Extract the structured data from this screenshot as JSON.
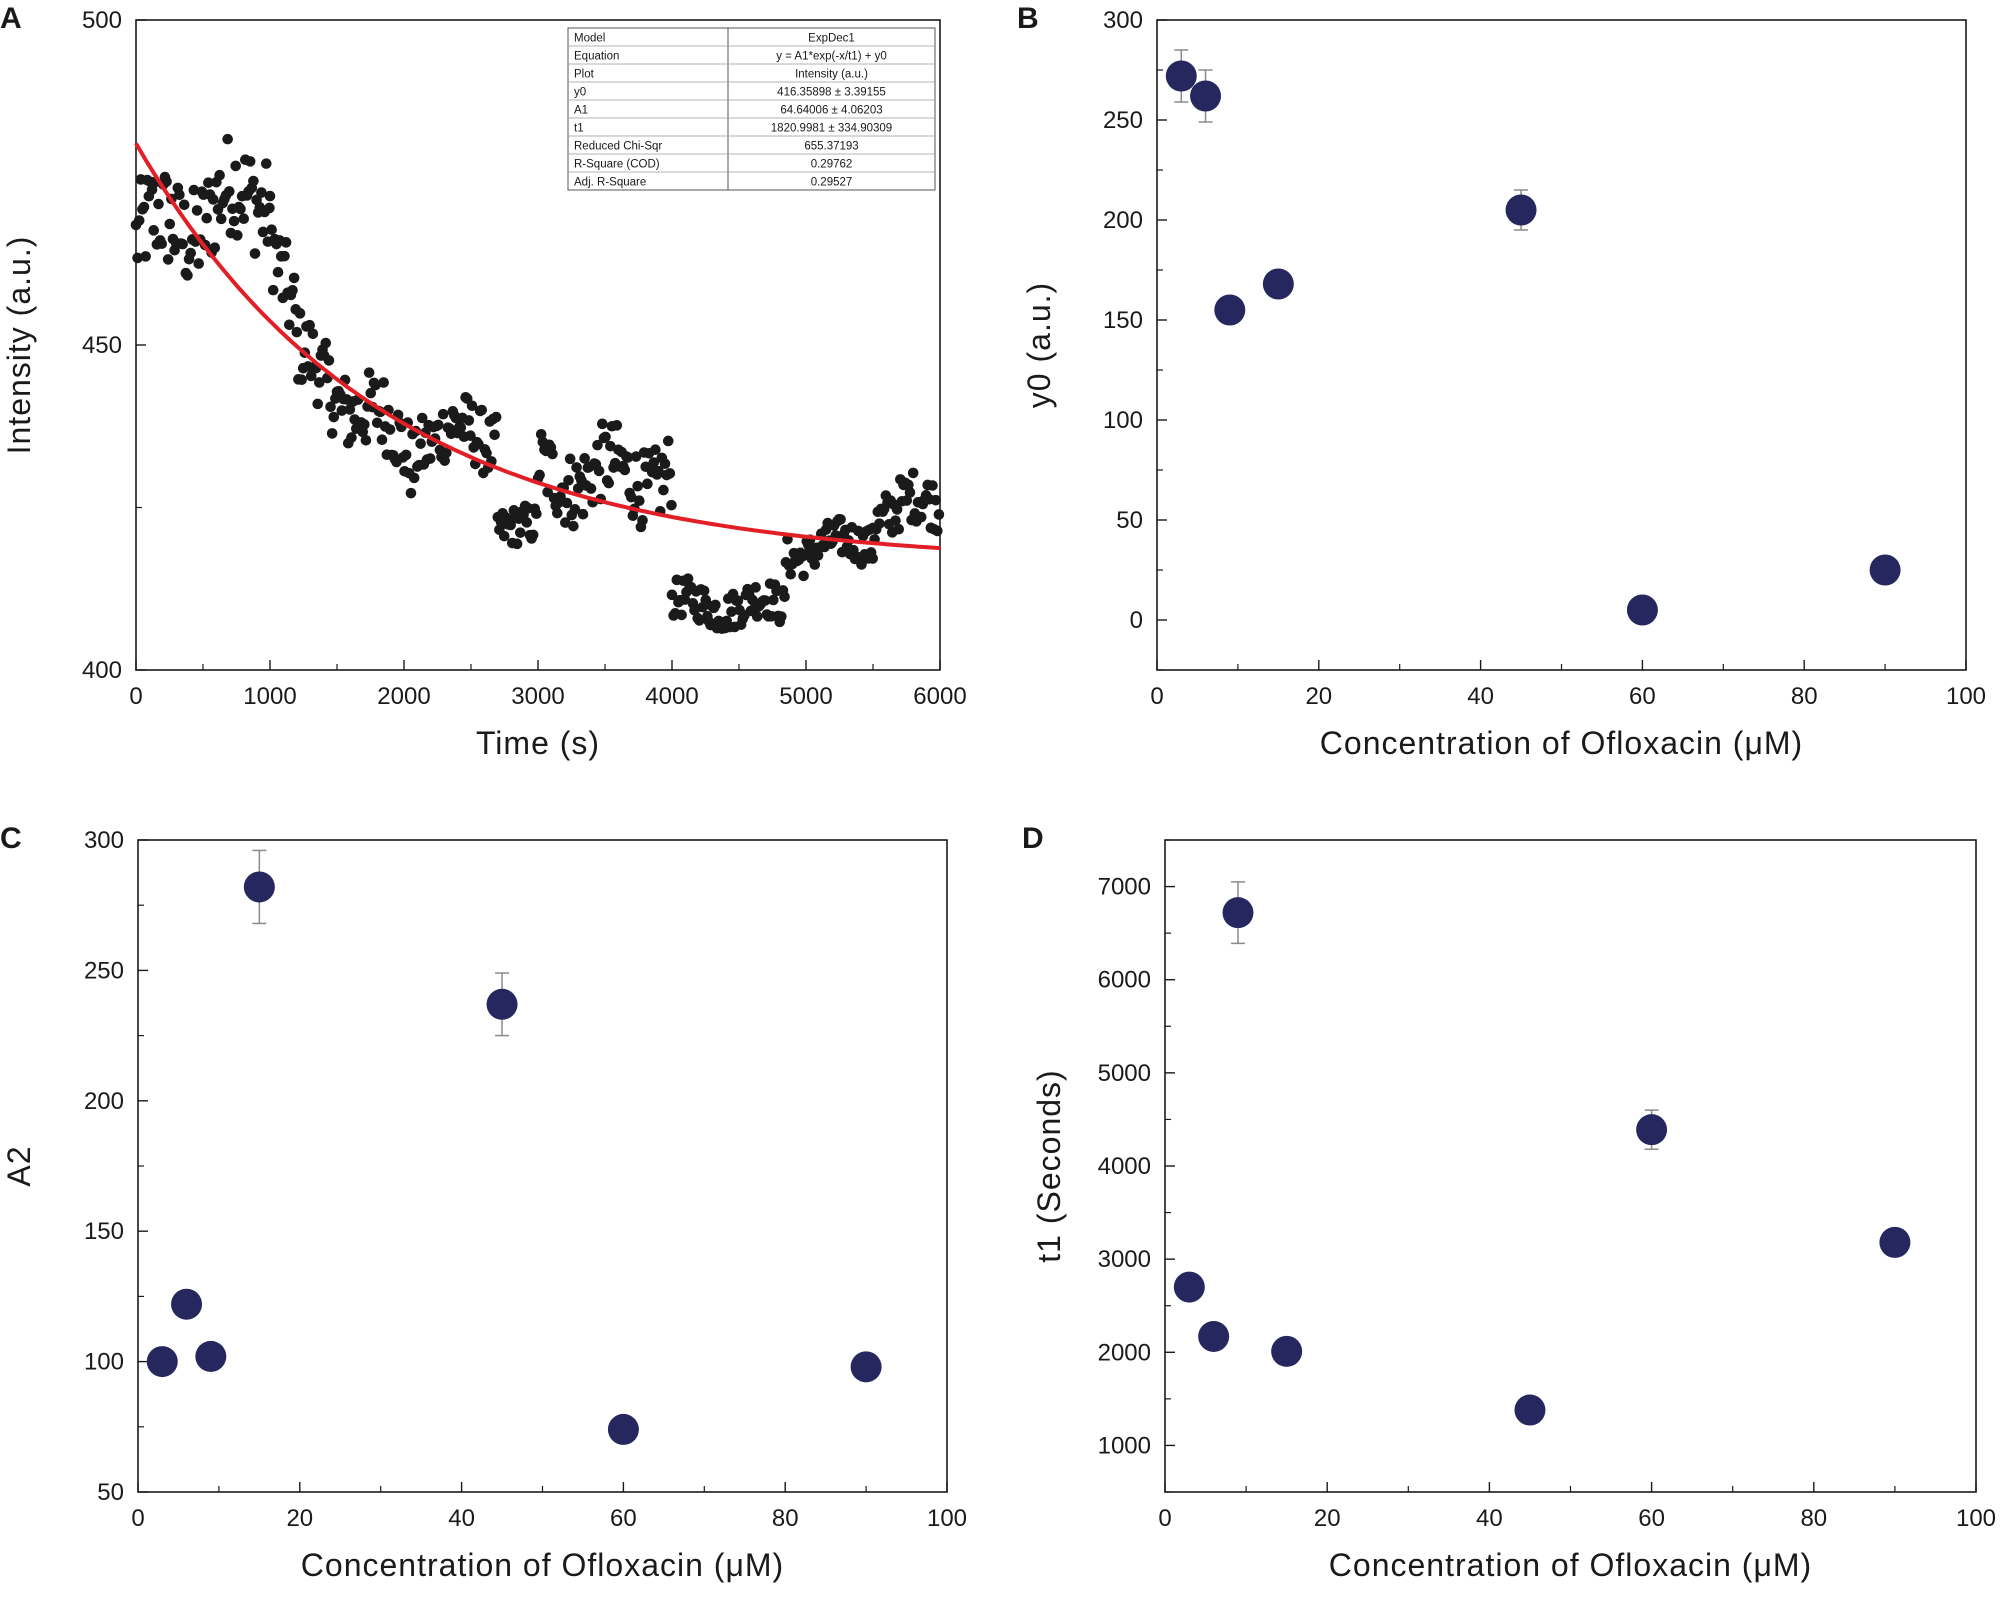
{
  "chart_data": [
    {
      "panel": "A",
      "type": "scatter",
      "xlabel": "Time (s)",
      "ylabel": "Intensity (a.u.)",
      "xlim": [
        0,
        6000
      ],
      "ylim": [
        400,
        500
      ],
      "xticks": [
        0,
        1000,
        2000,
        3000,
        4000,
        5000,
        6000
      ],
      "yticks": [
        400,
        450,
        500
      ],
      "scatter_color": "#1a1a1a",
      "fit_color": "#e21f26",
      "fit": {
        "model": "ExpDec1",
        "y0": 416.35898,
        "A1": 64.64006,
        "t1": 1820.9981
      },
      "table": [
        [
          "Model",
          "ExpDec1"
        ],
        [
          "Equation",
          "y = A1*exp(-x/t1) + y0"
        ],
        [
          "Plot",
          "Intensity (a.u.)"
        ],
        [
          "y0",
          "416.35898 ± 3.39155"
        ],
        [
          "A1",
          "64.64006 ± 4.06203"
        ],
        [
          "t1",
          "1820.9981 ± 334.90309"
        ],
        [
          "Reduced Chi-Sqr",
          "655.37193"
        ],
        [
          "R-Square (COD)",
          "0.29762"
        ],
        [
          "Adj. R-Square",
          "0.29527"
        ]
      ],
      "segments": [
        {
          "t0": 0,
          "t1": 1000,
          "base0": 466,
          "base1": 474,
          "noise": 8
        },
        {
          "t0": 1000,
          "t1": 1200,
          "base0": 470,
          "base1": 452,
          "noise": 7
        },
        {
          "t0": 1200,
          "t1": 2100,
          "base0": 448,
          "base1": 433,
          "noise": 6
        },
        {
          "t0": 2100,
          "t1": 2700,
          "base0": 436,
          "base1": 436,
          "noise": 5
        },
        {
          "t0": 2700,
          "t1": 3000,
          "base0": 423,
          "base1": 421,
          "noise": 3
        },
        {
          "t0": 3000,
          "t1": 4000,
          "base0": 430,
          "base1": 430,
          "noise": 6
        },
        {
          "t0": 4000,
          "t1": 4850,
          "base0": 410,
          "base1": 410,
          "noise": 3
        },
        {
          "t0": 4850,
          "t1": 5500,
          "base0": 418,
          "base1": 420,
          "noise": 3
        },
        {
          "t0": 5500,
          "t1": 6000,
          "base0": 424,
          "base1": 426,
          "noise": 4
        }
      ]
    },
    {
      "panel": "B",
      "type": "scatter",
      "xlabel": "Concentration of Ofloxacin (μM)",
      "ylabel": "y0 (a.u.)",
      "xlim": [
        0,
        100
      ],
      "ylim": [
        -25,
        300
      ],
      "xticks": [
        0,
        20,
        40,
        60,
        80,
        100
      ],
      "yticks": [
        0,
        50,
        100,
        150,
        200,
        250,
        300
      ],
      "marker_color": "#27275f",
      "points": [
        {
          "x": 3,
          "y": 272,
          "err": 13
        },
        {
          "x": 6,
          "y": 262,
          "err": 13
        },
        {
          "x": 9,
          "y": 155,
          "err": 0
        },
        {
          "x": 15,
          "y": 168,
          "err": 0
        },
        {
          "x": 45,
          "y": 205,
          "err": 10
        },
        {
          "x": 60,
          "y": 5,
          "err": 0
        },
        {
          "x": 90,
          "y": 25,
          "err": 0
        }
      ]
    },
    {
      "panel": "C",
      "type": "scatter",
      "xlabel": "Concentration of Ofloxacin (μM)",
      "ylabel": "A2",
      "xlim": [
        0,
        100
      ],
      "ylim": [
        50,
        300
      ],
      "xticks": [
        0,
        20,
        40,
        60,
        80,
        100
      ],
      "yticks": [
        50,
        100,
        150,
        200,
        250,
        300
      ],
      "marker_color": "#27275f",
      "points": [
        {
          "x": 3,
          "y": 100,
          "err": 0
        },
        {
          "x": 6,
          "y": 122,
          "err": 0
        },
        {
          "x": 9,
          "y": 102,
          "err": 0
        },
        {
          "x": 15,
          "y": 282,
          "err": 14
        },
        {
          "x": 45,
          "y": 237,
          "err": 12
        },
        {
          "x": 60,
          "y": 74,
          "err": 0
        },
        {
          "x": 90,
          "y": 98,
          "err": 0
        }
      ]
    },
    {
      "panel": "D",
      "type": "scatter",
      "xlabel": "Concentration of Ofloxacin (μM)",
      "ylabel": "t1 (Seconds)",
      "xlim": [
        0,
        100
      ],
      "ylim": [
        500,
        7500
      ],
      "xticks": [
        0,
        20,
        40,
        60,
        80,
        100
      ],
      "yticks": [
        1000,
        2000,
        3000,
        4000,
        5000,
        6000,
        7000
      ],
      "marker_color": "#27275f",
      "points": [
        {
          "x": 3,
          "y": 2700,
          "err": 0
        },
        {
          "x": 6,
          "y": 2170,
          "err": 0
        },
        {
          "x": 9,
          "y": 6720,
          "err": 330
        },
        {
          "x": 15,
          "y": 2010,
          "err": 0
        },
        {
          "x": 45,
          "y": 1380,
          "err": 0
        },
        {
          "x": 60,
          "y": 4390,
          "err": 210
        },
        {
          "x": 90,
          "y": 3180,
          "err": 0
        }
      ]
    }
  ]
}
